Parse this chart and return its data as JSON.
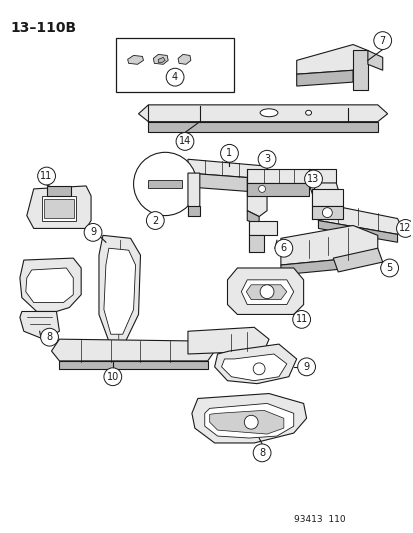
{
  "title": "13–110B",
  "footer": "93413  110",
  "bg_color": "#ffffff",
  "lc": "#1a1a1a",
  "fc_light": "#e8e8e8",
  "fc_mid": "#d0d0d0",
  "fc_dark": "#b8b8b8"
}
